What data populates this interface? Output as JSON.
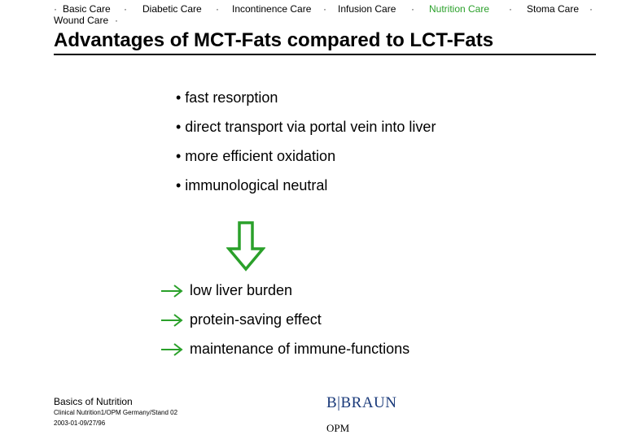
{
  "nav": {
    "items": [
      {
        "label": "Basic Care",
        "active": false
      },
      {
        "label": "Diabetic Care",
        "active": false
      },
      {
        "label": "Incontinence Care",
        "active": false
      },
      {
        "label": "Infusion Care",
        "active": false
      },
      {
        "label": "Nutrition Care",
        "active": true
      },
      {
        "label": "Stoma Care",
        "active": false
      },
      {
        "label": "Wound Care",
        "active": false
      }
    ],
    "separator": "·"
  },
  "title": "Advantages of MCT-Fats compared to LCT-Fats",
  "bullets": [
    "• fast resorption",
    "• direct transport via portal vein into liver",
    "• more efficient oxidation",
    "• immunological neutral"
  ],
  "results": [
    "low liver burden",
    "protein-saving effect",
    "maintenance of immune-functions"
  ],
  "footer": {
    "section": "Basics of Nutrition",
    "source": "Clinical Nutrition1/OPM Germany/Stand 02",
    "date": "2003-01-09/27/96",
    "logo": "B|BRAUN",
    "logo_sub": "OPM"
  },
  "colors": {
    "accent_green": "#2aa02a",
    "text": "#000000",
    "logo_blue": "#1a3a7a"
  },
  "icons": {
    "big_arrow": "down-arrow-outline-icon",
    "result_arrow": "right-arrow-icon"
  }
}
